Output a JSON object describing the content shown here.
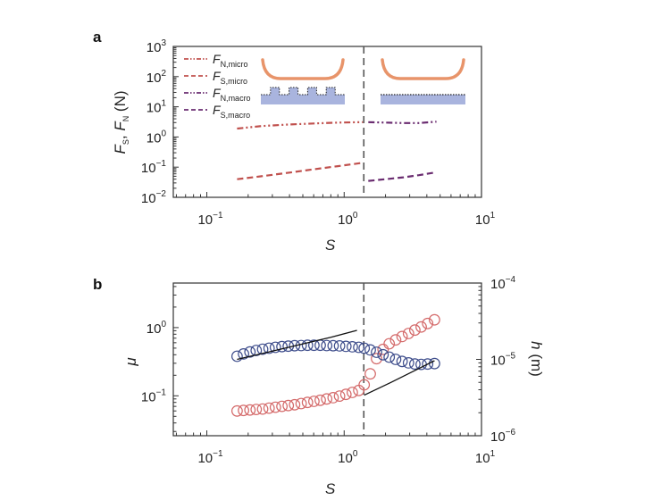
{
  "chart_data": [
    {
      "panel": "a",
      "type": "line",
      "xlabel": "S",
      "ylabel": "F_S, F_N (N)",
      "xscale": "log",
      "yscale": "log",
      "xlim": [
        0.057,
        10
      ],
      "ylim": [
        0.01,
        1000
      ],
      "x_ticks": [
        {
          "value": 0.1,
          "base": "10",
          "exp": "−1"
        },
        {
          "value": 1,
          "base": "10",
          "exp": "0"
        },
        {
          "value": 10,
          "base": "10",
          "exp": "1"
        }
      ],
      "y_ticks": [
        {
          "value": 1000,
          "base": "10",
          "exp": "3"
        },
        {
          "value": 100,
          "base": "10",
          "exp": "2"
        },
        {
          "value": 10,
          "base": "10",
          "exp": "1"
        },
        {
          "value": 1,
          "base": "10",
          "exp": "0"
        },
        {
          "value": 0.1,
          "base": "10",
          "exp": "−1"
        },
        {
          "value": 0.01,
          "base": "10",
          "exp": "−2"
        }
      ],
      "transition_S": 1.39,
      "legend_position": "top-left",
      "series": [
        {
          "name": "F_N,micro",
          "main": "F",
          "sub": "N,micro",
          "style": "dash-dot-dot",
          "color": "#c0504d",
          "x": [
            0.166,
            0.25,
            0.4,
            0.6,
            0.9,
            1.37
          ],
          "y": [
            1.9,
            2.3,
            2.6,
            2.8,
            3.0,
            3.1
          ]
        },
        {
          "name": "F_S,micro",
          "main": "F",
          "sub": "S,micro",
          "style": "dashed",
          "color": "#c0504d",
          "x": [
            0.166,
            0.25,
            0.4,
            0.6,
            0.9,
            1.37
          ],
          "y": [
            0.04,
            0.05,
            0.066,
            0.085,
            0.108,
            0.14
          ]
        },
        {
          "name": "F_N,macro",
          "main": "F",
          "sub": "N,macro",
          "style": "dash-dot-dot",
          "color": "#6a2c70",
          "x": [
            1.5,
            2.0,
            2.7,
            3.5,
            4.7
          ],
          "y": [
            3.1,
            3.0,
            2.9,
            2.9,
            3.2
          ]
        },
        {
          "name": "F_S,macro",
          "main": "F",
          "sub": "S,macro",
          "style": "dashed",
          "color": "#6a2c70",
          "x": [
            1.5,
            2.0,
            2.7,
            3.5,
            4.7
          ],
          "y": [
            0.035,
            0.04,
            0.046,
            0.054,
            0.068
          ]
        }
      ],
      "insets": [
        {
          "name": "micro-textured-contact",
          "region": "micro",
          "slider_color": "#e8946a",
          "substrate_color": "#a9b4de"
        },
        {
          "name": "macro-flat-contact",
          "region": "macro",
          "slider_color": "#e8946a",
          "substrate_color": "#a9b4de"
        }
      ]
    },
    {
      "panel": "b",
      "type": "scatter",
      "xlabel": "S",
      "ylabel_left": "μ",
      "ylabel_right": "h (m)",
      "xscale": "log",
      "yscale": "log",
      "xlim": [
        0.057,
        10
      ],
      "ylim_left": [
        0.026,
        4.5
      ],
      "ylim_right": [
        1e-06,
        0.0001
      ],
      "x_ticks": [
        {
          "value": 0.1,
          "base": "10",
          "exp": "−1"
        },
        {
          "value": 1,
          "base": "10",
          "exp": "0"
        },
        {
          "value": 10,
          "base": "10",
          "exp": "1"
        }
      ],
      "y_ticks_left": [
        {
          "value": 1,
          "base": "10",
          "exp": "0"
        },
        {
          "value": 0.1,
          "base": "10",
          "exp": "−1"
        }
      ],
      "y_ticks_right": [
        {
          "value": 0.0001,
          "base": "10",
          "exp": "−4"
        },
        {
          "value": 1e-05,
          "base": "10",
          "exp": "−5"
        },
        {
          "value": 1e-06,
          "base": "10",
          "exp": "−6"
        }
      ],
      "transition_S": 1.39,
      "series": [
        {
          "name": "mu",
          "axis": "left",
          "marker": "open-circle",
          "color": "#d46a6a",
          "x": [
            0.166,
            0.185,
            0.206,
            0.229,
            0.255,
            0.284,
            0.316,
            0.352,
            0.392,
            0.436,
            0.486,
            0.541,
            0.602,
            0.67,
            0.746,
            0.831,
            0.925,
            1.03,
            1.147,
            1.277,
            1.4,
            1.55,
            1.72,
            1.92,
            2.13,
            2.37,
            2.64,
            2.94,
            3.27,
            3.64,
            4.05,
            4.55
          ],
          "y": [
            0.06,
            0.061,
            0.062,
            0.063,
            0.064,
            0.066,
            0.068,
            0.07,
            0.072,
            0.074,
            0.077,
            0.08,
            0.083,
            0.086,
            0.09,
            0.094,
            0.099,
            0.105,
            0.112,
            0.12,
            0.145,
            0.21,
            0.35,
            0.48,
            0.58,
            0.66,
            0.74,
            0.82,
            0.92,
            1.02,
            1.15,
            1.3
          ]
        },
        {
          "name": "h",
          "axis": "right",
          "marker": "open-circle",
          "color": "#3f4e8c",
          "x": [
            0.166,
            0.185,
            0.206,
            0.229,
            0.255,
            0.284,
            0.316,
            0.352,
            0.392,
            0.436,
            0.486,
            0.541,
            0.602,
            0.67,
            0.746,
            0.831,
            0.925,
            1.03,
            1.147,
            1.277,
            1.4,
            1.55,
            1.72,
            1.92,
            2.13,
            2.37,
            2.64,
            2.94,
            3.27,
            3.64,
            4.05,
            4.55
          ],
          "y": [
            1.1e-05,
            1.18e-05,
            1.25e-05,
            1.31e-05,
            1.36e-05,
            1.4e-05,
            1.44e-05,
            1.47e-05,
            1.49e-05,
            1.51e-05,
            1.52e-05,
            1.53e-05,
            1.53e-05,
            1.53e-05,
            1.52e-05,
            1.51e-05,
            1.5e-05,
            1.48e-05,
            1.46e-05,
            1.44e-05,
            1.4e-05,
            1.33e-05,
            1.24e-05,
            1.15e-05,
            1.07e-05,
            1e-05,
            9.4e-06,
            9e-06,
            8.7e-06,
            8.6e-06,
            8.7e-06,
            8.8e-06
          ]
        },
        {
          "name": "h-fit-micro",
          "axis": "right",
          "marker": "line",
          "color": "#111111",
          "x": [
            0.166,
            0.4,
            0.8,
            1.24
          ],
          "y": [
            1e-05,
            1.45e-05,
            1.95e-05,
            2.4e-05
          ]
        },
        {
          "name": "h-fit-macro",
          "axis": "right",
          "marker": "line",
          "color": "#111111",
          "x": [
            1.4,
            2.2,
            3.3,
            4.55
          ],
          "y": [
            3.4e-06,
            5e-06,
            7.2e-06,
            9.6e-06
          ]
        }
      ]
    }
  ],
  "labels": {
    "panel_a": "a",
    "panel_b": "b",
    "a_xlabel": "S",
    "b_xlabel": "S",
    "b_ylabel_left": "μ",
    "b_ylabel_right": "h (m)"
  }
}
